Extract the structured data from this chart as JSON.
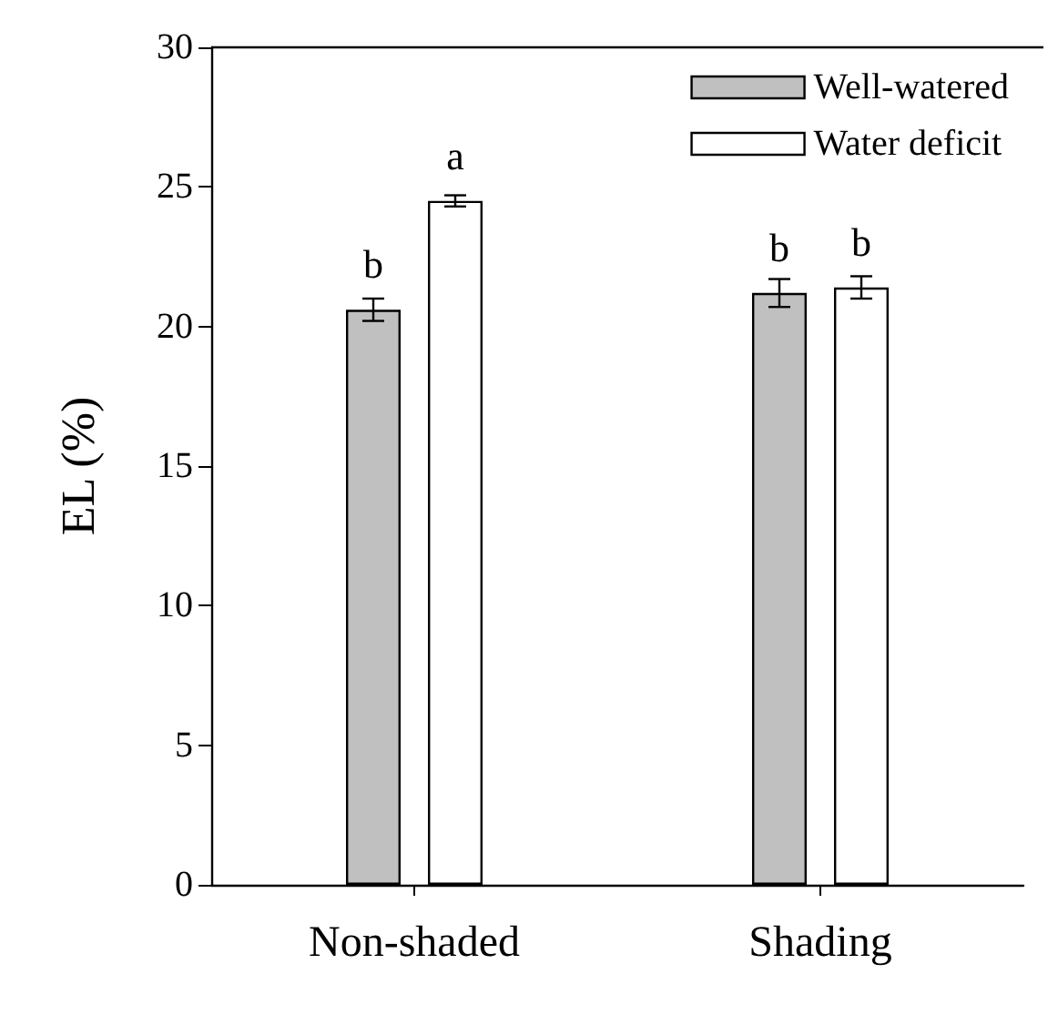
{
  "chart_data": {
    "type": "bar",
    "ylabel": "EL (%)",
    "categories": [
      "Non-shaded",
      "Shading"
    ],
    "series": [
      {
        "name": "Well-watered",
        "color": "#c0c0c0",
        "values": [
          20.6,
          21.2
        ],
        "errors": [
          0.4,
          0.5
        ],
        "value_labels": [
          "b",
          "b"
        ]
      },
      {
        "name": "Water deficit",
        "color": "#ffffff",
        "values": [
          24.5,
          21.4
        ],
        "errors": [
          0.2,
          0.4
        ],
        "value_labels": [
          "a",
          "b"
        ]
      }
    ],
    "ylim": [
      0,
      30
    ],
    "yticks": [
      0,
      5,
      10,
      15,
      20,
      25,
      30
    ],
    "grid": false,
    "legend": "top right"
  }
}
